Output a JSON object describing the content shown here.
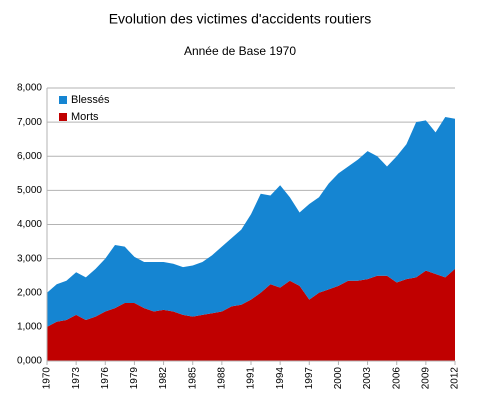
{
  "chart_data": {
    "type": "stacked-area",
    "title": "Evolution des victimes d'accidents routiers",
    "subtitle": "Année de Base 1970",
    "x": [
      1970,
      1971,
      1972,
      1973,
      1974,
      1975,
      1976,
      1977,
      1978,
      1979,
      1980,
      1981,
      1982,
      1983,
      1984,
      1985,
      1986,
      1987,
      1988,
      1989,
      1990,
      1991,
      1992,
      1993,
      1994,
      1995,
      1996,
      1997,
      1998,
      1999,
      2000,
      2001,
      2002,
      2003,
      2004,
      2005,
      2006,
      2007,
      2008,
      2009,
      2010,
      2011,
      2012
    ],
    "series": [
      {
        "name": "Morts",
        "color": "#c00000",
        "values": [
          1000,
          1150,
          1200,
          1350,
          1200,
          1300,
          1450,
          1550,
          1700,
          1700,
          1550,
          1450,
          1500,
          1450,
          1350,
          1300,
          1350,
          1400,
          1450,
          1600,
          1650,
          1800,
          2000,
          2250,
          2150,
          2350,
          2200,
          1800,
          2000,
          2100,
          2200,
          2350,
          2350,
          2400,
          2500,
          2500,
          2300,
          2400,
          2450,
          2650,
          2550,
          2450,
          2700
        ]
      },
      {
        "name": "Blessés",
        "color": "#1585d2",
        "values": [
          1000,
          1100,
          1150,
          1250,
          1250,
          1400,
          1550,
          1850,
          1650,
          1350,
          1350,
          1450,
          1400,
          1400,
          1400,
          1500,
          1550,
          1700,
          1900,
          2000,
          2200,
          2500,
          2900,
          2600,
          3000,
          2450,
          2150,
          2800,
          2800,
          3100,
          3300,
          3350,
          3550,
          3750,
          3500,
          3200,
          3700,
          3950,
          4550,
          4400,
          4150,
          4700,
          4400
        ]
      }
    ],
    "xlim": [
      1970,
      2012
    ],
    "xticks": [
      1970,
      1973,
      1976,
      1979,
      1982,
      1985,
      1988,
      1991,
      1994,
      1997,
      2000,
      2003,
      2006,
      2009,
      2012
    ],
    "ylim": [
      0,
      8000
    ],
    "yticks": [
      {
        "value": 0,
        "label": "0,000"
      },
      {
        "value": 1000,
        "label": "1,000"
      },
      {
        "value": 2000,
        "label": "2,000"
      },
      {
        "value": 3000,
        "label": "3,000"
      },
      {
        "value": 4000,
        "label": "4,000"
      },
      {
        "value": 5000,
        "label": "5,000"
      },
      {
        "value": 6000,
        "label": "6,000"
      },
      {
        "value": 7000,
        "label": "7,000"
      },
      {
        "value": 8000,
        "label": "8,000"
      }
    ],
    "grid": true,
    "legend": "top-left"
  }
}
